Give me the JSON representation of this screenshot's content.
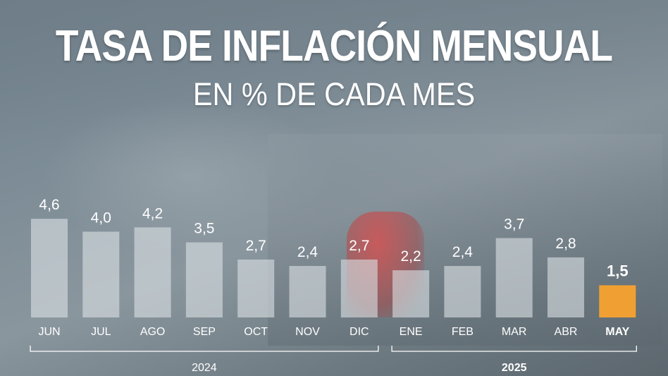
{
  "header": {
    "title": "TASA DE INFLACIÓN MENSUAL",
    "subtitle": "EN % DE CADA MES"
  },
  "chart_data": {
    "type": "bar",
    "categories": [
      "JUN",
      "JUL",
      "AGO",
      "SEP",
      "OCT",
      "NOV",
      "DIC",
      "ENE",
      "FEB",
      "MAR",
      "ABR",
      "MAY"
    ],
    "values": [
      4.6,
      4.0,
      4.2,
      3.5,
      2.7,
      2.4,
      2.7,
      2.2,
      2.4,
      3.7,
      2.8,
      1.5
    ],
    "value_labels": [
      "4,6",
      "4,0",
      "4,2",
      "3,5",
      "2,7",
      "2,4",
      "2,7",
      "2,2",
      "2,4",
      "3,7",
      "2,8",
      "1,5"
    ],
    "highlight_index": 11,
    "groups": [
      {
        "label": "2024",
        "from": 0,
        "to": 6
      },
      {
        "label": "2025",
        "from": 7,
        "to": 11
      }
    ],
    "ylim": [
      0,
      5
    ],
    "grid": false,
    "colors": {
      "bar": "#d9dee2",
      "highlight": "#f0a033",
      "text": "#ffffff"
    }
  }
}
